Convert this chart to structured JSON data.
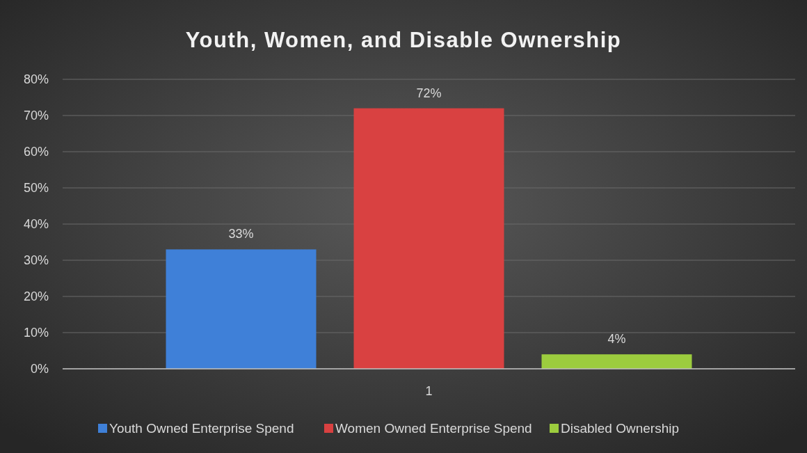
{
  "chart_data": {
    "type": "bar",
    "title": "Youth, Women, and Disable Ownership",
    "categories": [
      "1"
    ],
    "series": [
      {
        "name": "Youth Owned Enterprise Spend",
        "color": "#3f80d8",
        "values": [
          33
        ],
        "value_labels": [
          "33%"
        ]
      },
      {
        "name": "Women Owned Enterprise Spend",
        "color": "#d94141",
        "values": [
          72
        ],
        "value_labels": [
          "72%"
        ]
      },
      {
        "name": "Disabled Ownership",
        "color": "#9ccc3e",
        "values": [
          4
        ],
        "value_labels": [
          "4%"
        ]
      }
    ],
    "ylim": [
      0,
      80
    ],
    "yticks": [
      {
        "value": 0,
        "label": "0%"
      },
      {
        "value": 10,
        "label": "10%"
      },
      {
        "value": 20,
        "label": "20%"
      },
      {
        "value": 30,
        "label": "30%"
      },
      {
        "value": 40,
        "label": "40%"
      },
      {
        "value": 50,
        "label": "50%"
      },
      {
        "value": 60,
        "label": "60%"
      },
      {
        "value": 70,
        "label": "70%"
      },
      {
        "value": 80,
        "label": "80%"
      }
    ],
    "grid": "y",
    "legend": "bottom"
  }
}
